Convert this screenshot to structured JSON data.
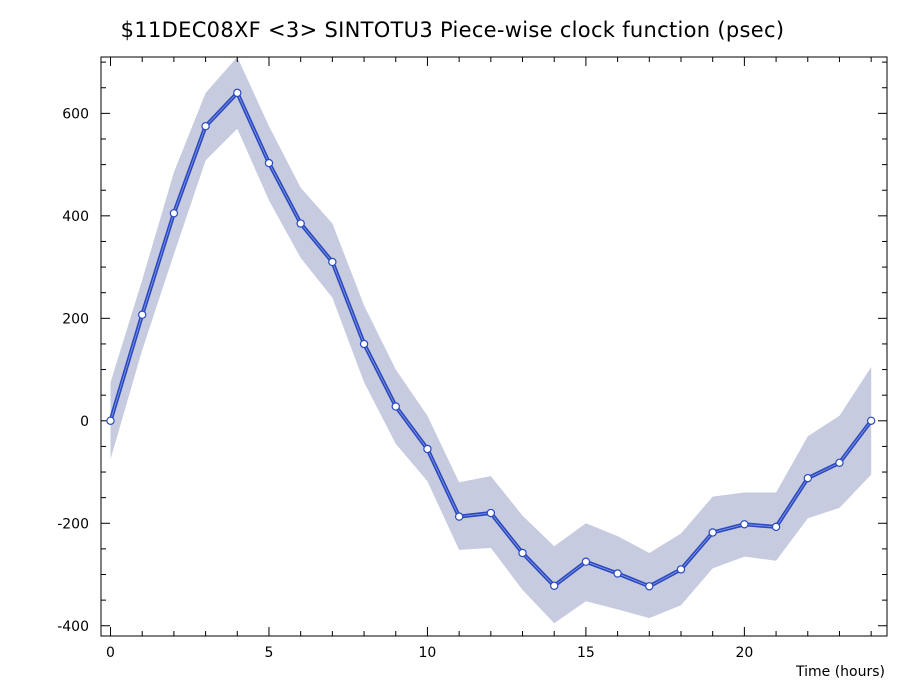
{
  "chart_data": {
    "type": "line",
    "title": "$11DEC08XF <3>  SINTOTU3  Piece-wise clock function (psec)",
    "xlabel": "Time (hours)",
    "ylabel": "",
    "xlim": [
      -0.3,
      24.5
    ],
    "ylim": [
      -420,
      710
    ],
    "xticks": [
      0,
      5,
      10,
      15,
      20
    ],
    "yticks": [
      -400,
      -200,
      0,
      200,
      400,
      600
    ],
    "grid": false,
    "colors": {
      "line": "#2a49c0",
      "band": "#c7cbe0",
      "marker_fill": "#ffffff",
      "marker_edge": "#2a49c0"
    },
    "series": [
      {
        "x": [
          0,
          1,
          2,
          3,
          4,
          5,
          6,
          7,
          8,
          9,
          10,
          11,
          12,
          13,
          14,
          15,
          16,
          17,
          18,
          19,
          20,
          21,
          22,
          23,
          24
        ],
        "values": [
          0,
          207,
          405,
          575,
          640,
          503,
          385,
          310,
          150,
          28,
          -55,
          -187,
          -180,
          -258,
          -322,
          -275,
          -298,
          -323,
          -290,
          -218,
          -202,
          -207,
          -112,
          -82,
          0
        ],
        "upper": [
          75,
          275,
          485,
          640,
          710,
          575,
          455,
          385,
          225,
          100,
          10,
          -120,
          -108,
          -185,
          -245,
          -200,
          -225,
          -258,
          -220,
          -148,
          -140,
          -140,
          -30,
          10,
          105
        ],
        "lower": [
          -75,
          138,
          325,
          508,
          570,
          430,
          318,
          240,
          75,
          -45,
          -118,
          -252,
          -248,
          -330,
          -395,
          -352,
          -368,
          -385,
          -360,
          -288,
          -265,
          -273,
          -190,
          -170,
          -105
        ]
      }
    ]
  }
}
